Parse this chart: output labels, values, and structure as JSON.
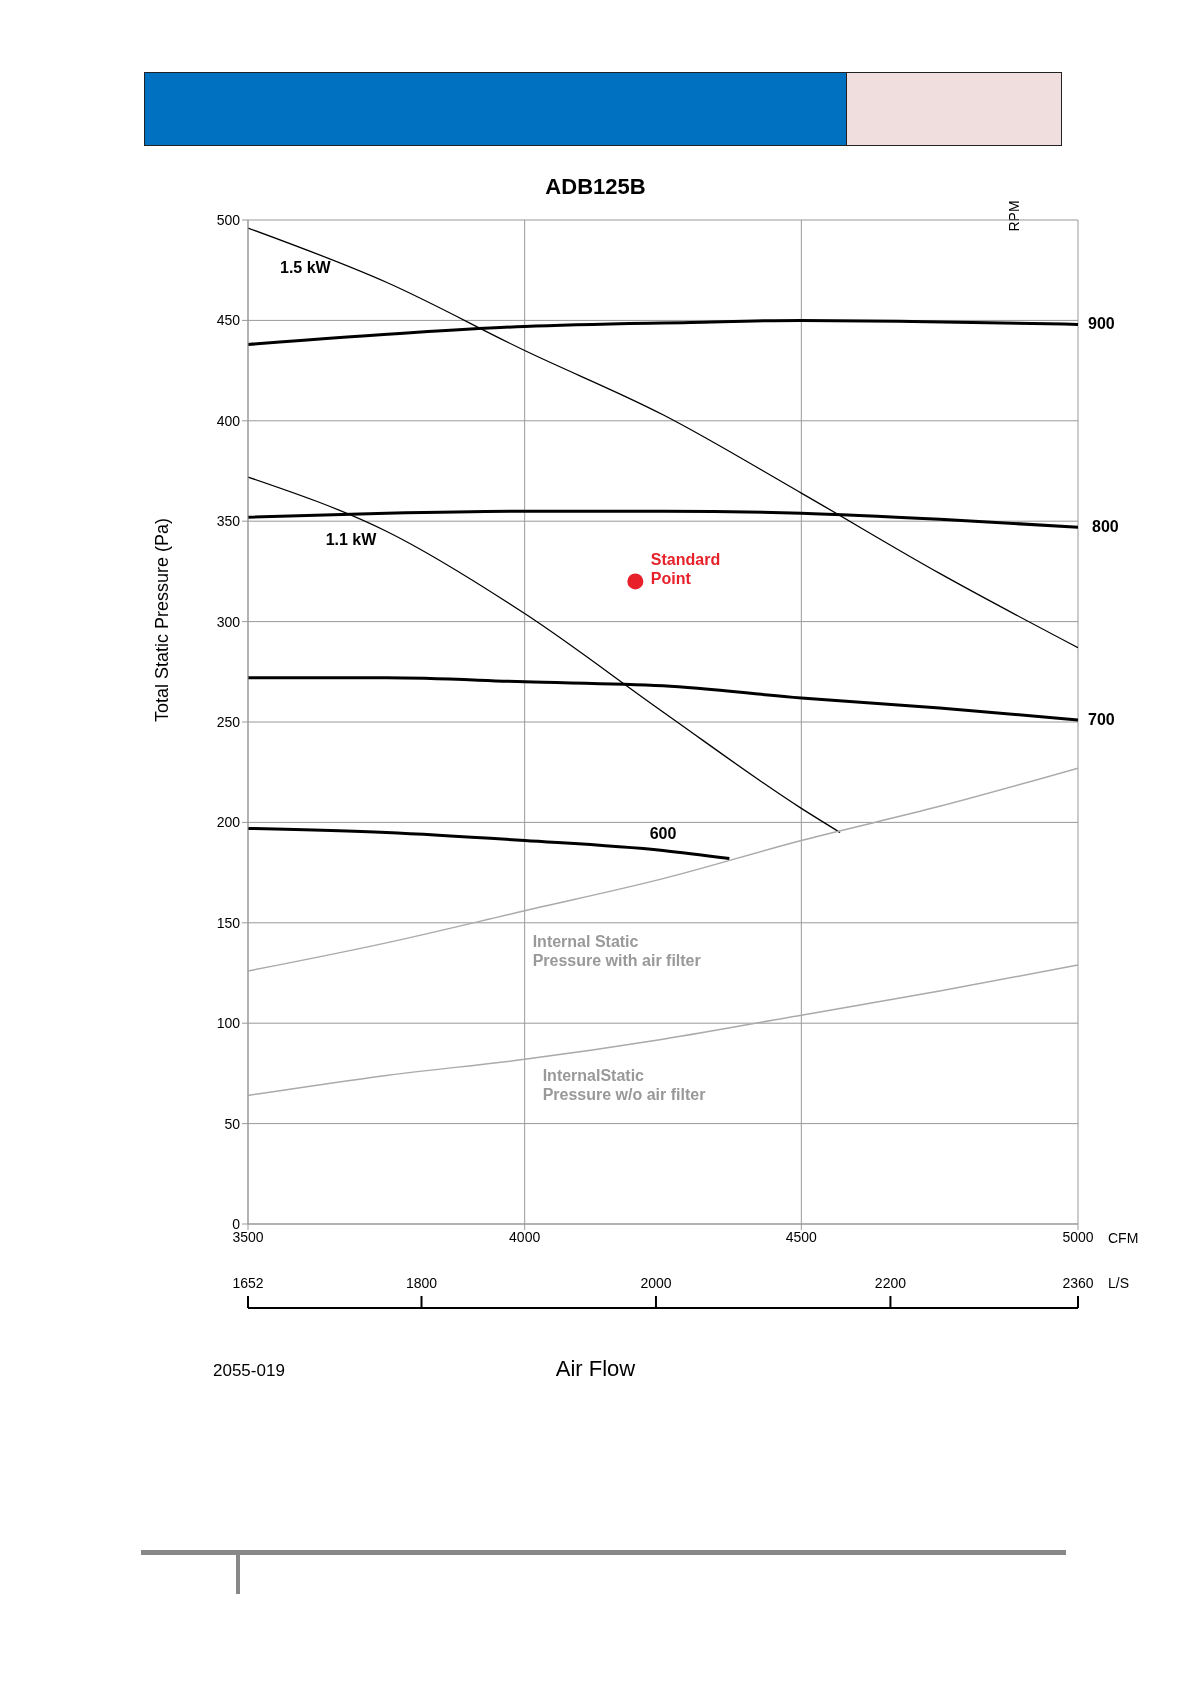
{
  "chart_data": {
    "type": "line",
    "title": "ADB125B",
    "xlabel": "CFM",
    "ylabel": "Total Static Pressure (Pa)",
    "x2label": "L/S",
    "annotations": [
      "RPM",
      "Air Flow",
      "2055-019"
    ],
    "xlim": [
      3500,
      5000
    ],
    "xticks": [
      3500,
      4000,
      4500,
      5000
    ],
    "x2lim": [
      1652,
      2360
    ],
    "x2ticks": [
      1652,
      1800,
      2000,
      2200,
      2360
    ],
    "ylim": [
      0,
      500
    ],
    "yticks": [
      0,
      50,
      100,
      150,
      200,
      250,
      300,
      350,
      400,
      450,
      500
    ],
    "grid": true,
    "legend": false,
    "marker": "none",
    "line_style": "solid",
    "series": [
      {
        "name": "900",
        "color": "#000000",
        "x": [
          3500,
          3800,
          4000,
          4300,
          4500,
          4700,
          5000
        ],
        "values": [
          438,
          444,
          447,
          449,
          450,
          449.5,
          448
        ]
      },
      {
        "name": "800",
        "color": "#000000",
        "x": [
          3500,
          3750,
          4000,
          4250,
          4500,
          4750,
          5000
        ],
        "values": [
          352,
          354,
          355,
          355,
          354,
          351,
          347
        ]
      },
      {
        "name": "700",
        "color": "#000000",
        "x": [
          3500,
          3750,
          4000,
          4250,
          4500,
          4750,
          5000
        ],
        "values": [
          272,
          272,
          270,
          268,
          262,
          257,
          251
        ]
      },
      {
        "name": "600",
        "color": "#000000",
        "x": [
          3500,
          3750,
          4000,
          4250,
          4370
        ],
        "values": [
          197,
          195,
          191,
          186,
          182
        ]
      },
      {
        "name": "1.5 kW",
        "color": "#000000",
        "x": [
          3500,
          3750,
          4000,
          4250,
          4500,
          4750,
          5000
        ],
        "values": [
          496,
          469,
          435,
          403,
          364,
          324,
          287
        ]
      },
      {
        "name": "1.1 kW",
        "color": "#000000",
        "x": [
          3500,
          3750,
          4000,
          4250,
          4500,
          4570
        ],
        "values": [
          372,
          345,
          304,
          255,
          207,
          195
        ]
      },
      {
        "name": "Internal Static Pressure with air filter",
        "color": "#aaaaaa",
        "x": [
          3500,
          3750,
          4000,
          4250,
          4500,
          4750,
          5000
        ],
        "values": [
          126,
          140,
          156,
          172,
          191,
          208,
          227
        ]
      },
      {
        "name": "InternalStatic Pressure w/o air filter",
        "color": "#aaaaaa",
        "x": [
          3500,
          3750,
          4000,
          4250,
          4500,
          4750,
          5000
        ],
        "values": [
          64,
          74,
          82,
          92,
          104,
          116,
          129
        ]
      },
      {
        "name": "Standard Point",
        "type": "scatter",
        "marker": "circle",
        "color": "#e8202a",
        "x": [
          4200
        ],
        "values": [
          320
        ]
      }
    ]
  }
}
